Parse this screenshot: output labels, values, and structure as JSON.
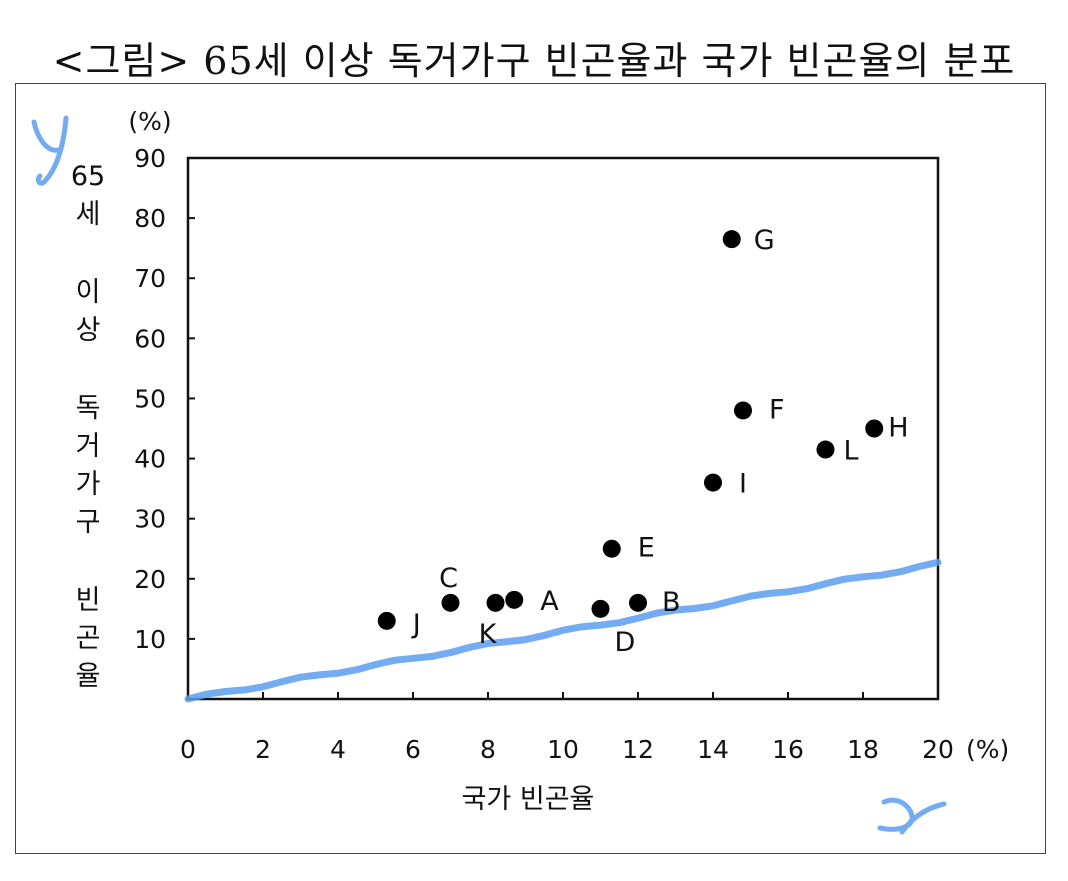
{
  "title": "<그림> 65세 이상 독거가구 빈곤율과 국가 빈곤율의 분포",
  "chart_data": {
    "type": "scatter",
    "xlabel": "국가 빈곤율",
    "ylabel_lines": [
      "65",
      "세",
      "",
      "이",
      "상",
      "",
      "독",
      "거",
      "가",
      "구",
      "",
      "빈",
      "곤",
      "율"
    ],
    "x_unit": "(%)",
    "y_unit": "(%)",
    "xlim": [
      0,
      20
    ],
    "ylim": [
      0,
      90
    ],
    "x_ticks": [
      "0",
      "2",
      "4",
      "6",
      "8",
      "10",
      "12",
      "14",
      "16",
      "18",
      "20"
    ],
    "y_ticks": [
      "10",
      "20",
      "30",
      "40",
      "50",
      "60",
      "70",
      "80",
      "90"
    ],
    "grid": false,
    "points": [
      {
        "label": "A",
        "x": 8.7,
        "y": 16.5
      },
      {
        "label": "B",
        "x": 12.0,
        "y": 16.0
      },
      {
        "label": "C",
        "x": 7.0,
        "y": 16.0
      },
      {
        "label": "D",
        "x": 11.0,
        "y": 15.0
      },
      {
        "label": "E",
        "x": 11.3,
        "y": 25.0
      },
      {
        "label": "F",
        "x": 14.8,
        "y": 48.0
      },
      {
        "label": "G",
        "x": 14.5,
        "y": 76.5
      },
      {
        "label": "H",
        "x": 18.3,
        "y": 45.0
      },
      {
        "label": "I",
        "x": 14.0,
        "y": 36.0
      },
      {
        "label": "J",
        "x": 5.3,
        "y": 13.0
      },
      {
        "label": "K",
        "x": 8.2,
        "y": 16.0
      },
      {
        "label": "L",
        "x": 17.0,
        "y": 41.5
      }
    ],
    "reference_line": {
      "from": [
        0,
        0
      ],
      "to": [
        20,
        22.5
      ],
      "color": "#5b9ef0"
    },
    "annotations": [
      "y",
      "x"
    ],
    "colors": {
      "points": "#000000",
      "line": "#5b9ef0"
    }
  }
}
